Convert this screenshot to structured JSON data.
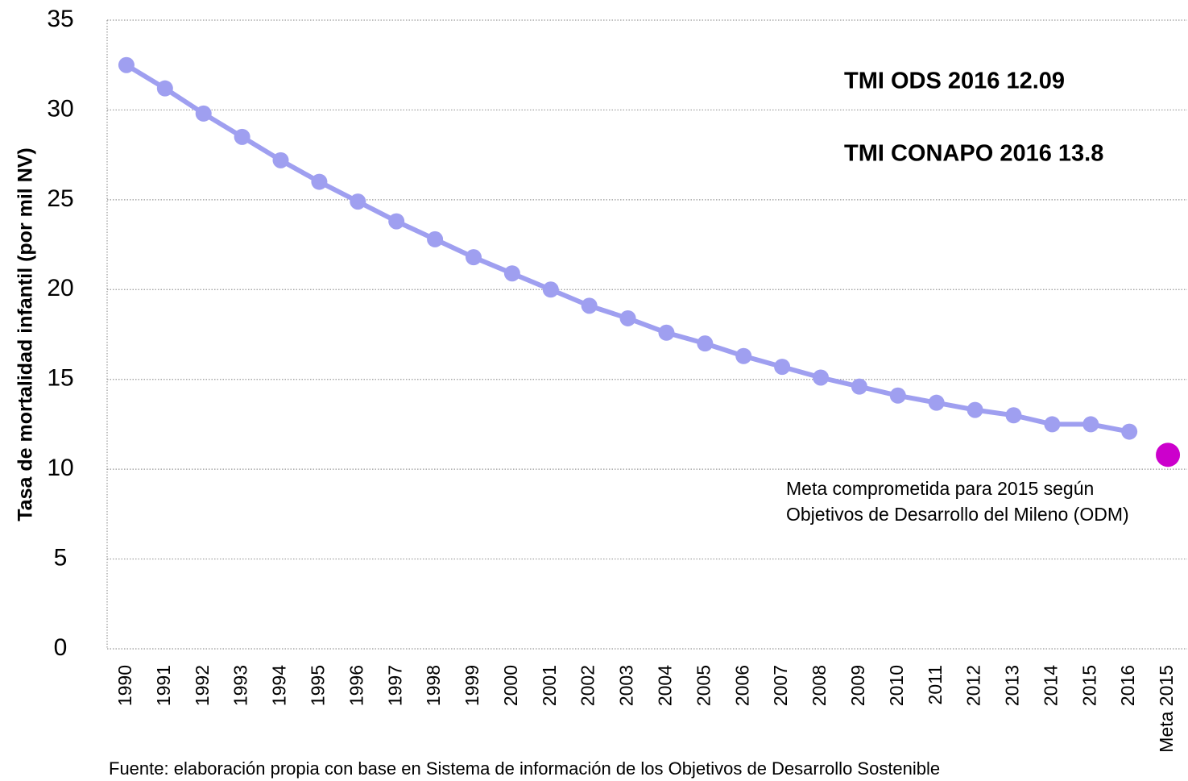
{
  "chart_data": {
    "type": "line",
    "y_label": "Tasa de mortalidad infantil (por mil NV)",
    "categories": [
      "1990",
      "1991",
      "1992",
      "1993",
      "1994",
      "1995",
      "1996",
      "1997",
      "1998",
      "1999",
      "2000",
      "2001",
      "2002",
      "2003",
      "2004",
      "2005",
      "2006",
      "2007",
      "2008",
      "2009",
      "2010",
      "2011",
      "2012",
      "2013",
      "2014",
      "2015",
      "2016",
      "Meta 2015"
    ],
    "series": [
      {
        "name": "TMI",
        "color": "#9f9ff0",
        "values": [
          32.5,
          31.2,
          29.8,
          28.5,
          27.2,
          26.0,
          24.9,
          23.8,
          22.8,
          21.8,
          20.9,
          20.0,
          19.1,
          18.4,
          17.6,
          17.0,
          16.3,
          15.7,
          15.1,
          14.6,
          14.1,
          13.7,
          13.3,
          13.0,
          12.5,
          12.5,
          12.09,
          null
        ]
      },
      {
        "name": "Meta",
        "color": "#cc00cc",
        "values": [
          null,
          null,
          null,
          null,
          null,
          null,
          null,
          null,
          null,
          null,
          null,
          null,
          null,
          null,
          null,
          null,
          null,
          null,
          null,
          null,
          null,
          null,
          null,
          null,
          null,
          null,
          null,
          10.8
        ]
      }
    ],
    "ylim": [
      0,
      35
    ],
    "yticks": [
      0,
      5,
      10,
      15,
      20,
      25,
      30,
      35
    ],
    "grid": true,
    "annotations": [
      "TMI ODS 2016 12.09",
      "TMI CONAPO 2016 13.8"
    ],
    "meta_note": [
      "Meta comprometida para 2015 según",
      "Objetivos de Desarrollo del Mileno (ODM)"
    ],
    "source": "Fuente: elaboración propia con base en Sistema de información de los Objetivos de Desarrollo Sostenible"
  }
}
